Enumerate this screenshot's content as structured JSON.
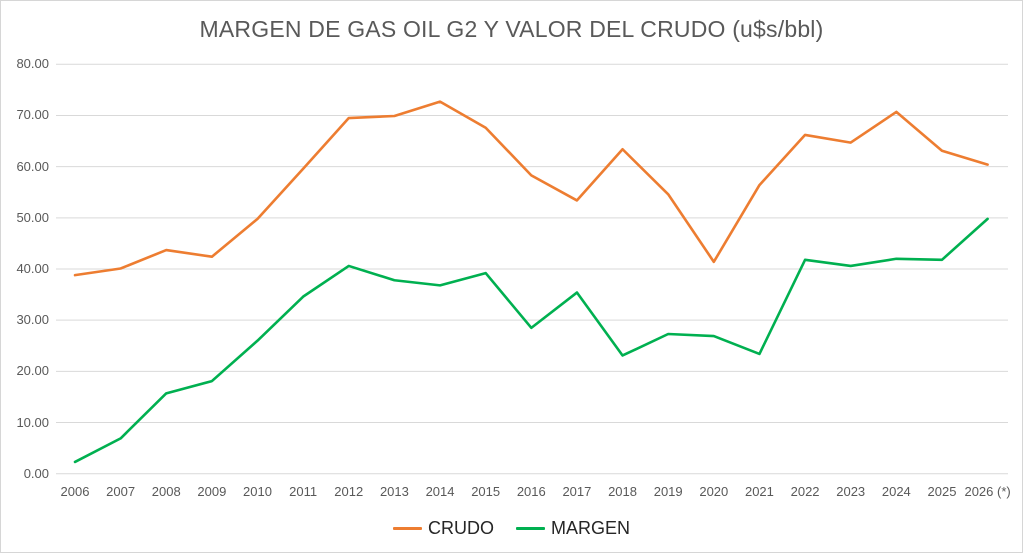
{
  "title": "MARGEN DE GAS OIL G2 Y VALOR DEL CRUDO (u$s/bbl)",
  "colors": {
    "crudo_line": "#ED7D31",
    "margen_line": "#00B050",
    "gridline": "#D9D9D9",
    "axis_text": "#595959",
    "title_text": "#595959",
    "legend_text": "#262626"
  },
  "y_axis": {
    "tick_labels": [
      "0.00",
      "10.00",
      "20.00",
      "30.00",
      "40.00",
      "50.00",
      "60.00",
      "70.00",
      "80.00"
    ],
    "min": 0,
    "max": 80,
    "step": 10
  },
  "legend": {
    "items": [
      {
        "label": "CRUDO",
        "color": "#ED7D31"
      },
      {
        "label": "MARGEN",
        "color": "#00B050"
      }
    ]
  },
  "chart_data": {
    "type": "line",
    "title": "MARGEN DE GAS OIL G2 Y VALOR DEL CRUDO (u$s/bbl)",
    "categories": [
      "2006",
      "2007",
      "2008",
      "2009",
      "2010",
      "2011",
      "2012",
      "2013",
      "2014",
      "2015",
      "2016",
      "2017",
      "2018",
      "2019",
      "2020",
      "2021",
      "2022",
      "2023",
      "2024",
      "2025",
      "2026 (*)"
    ],
    "series": [
      {
        "name": "CRUDO",
        "color": "#ED7D31",
        "values": [
          38.8,
          40.1,
          43.7,
          42.4,
          49.8,
          59.6,
          69.5,
          69.9,
          72.7,
          67.6,
          58.3,
          53.4,
          63.4,
          54.6,
          41.4,
          56.4,
          66.2,
          64.7,
          70.7,
          63.1,
          60.4
        ]
      },
      {
        "name": "MARGEN",
        "color": "#00B050",
        "values": [
          2.3,
          6.9,
          15.7,
          18.1,
          26.0,
          34.6,
          40.6,
          37.8,
          36.8,
          39.2,
          28.5,
          35.4,
          23.1,
          27.3,
          26.9,
          23.4,
          41.8,
          40.6,
          42.0,
          41.8,
          49.8
        ]
      }
    ],
    "xlabel": "",
    "ylabel": "",
    "ylim": [
      0,
      80
    ],
    "ytick_step": 10,
    "grid": "horizontal",
    "legend_position": "bottom"
  }
}
